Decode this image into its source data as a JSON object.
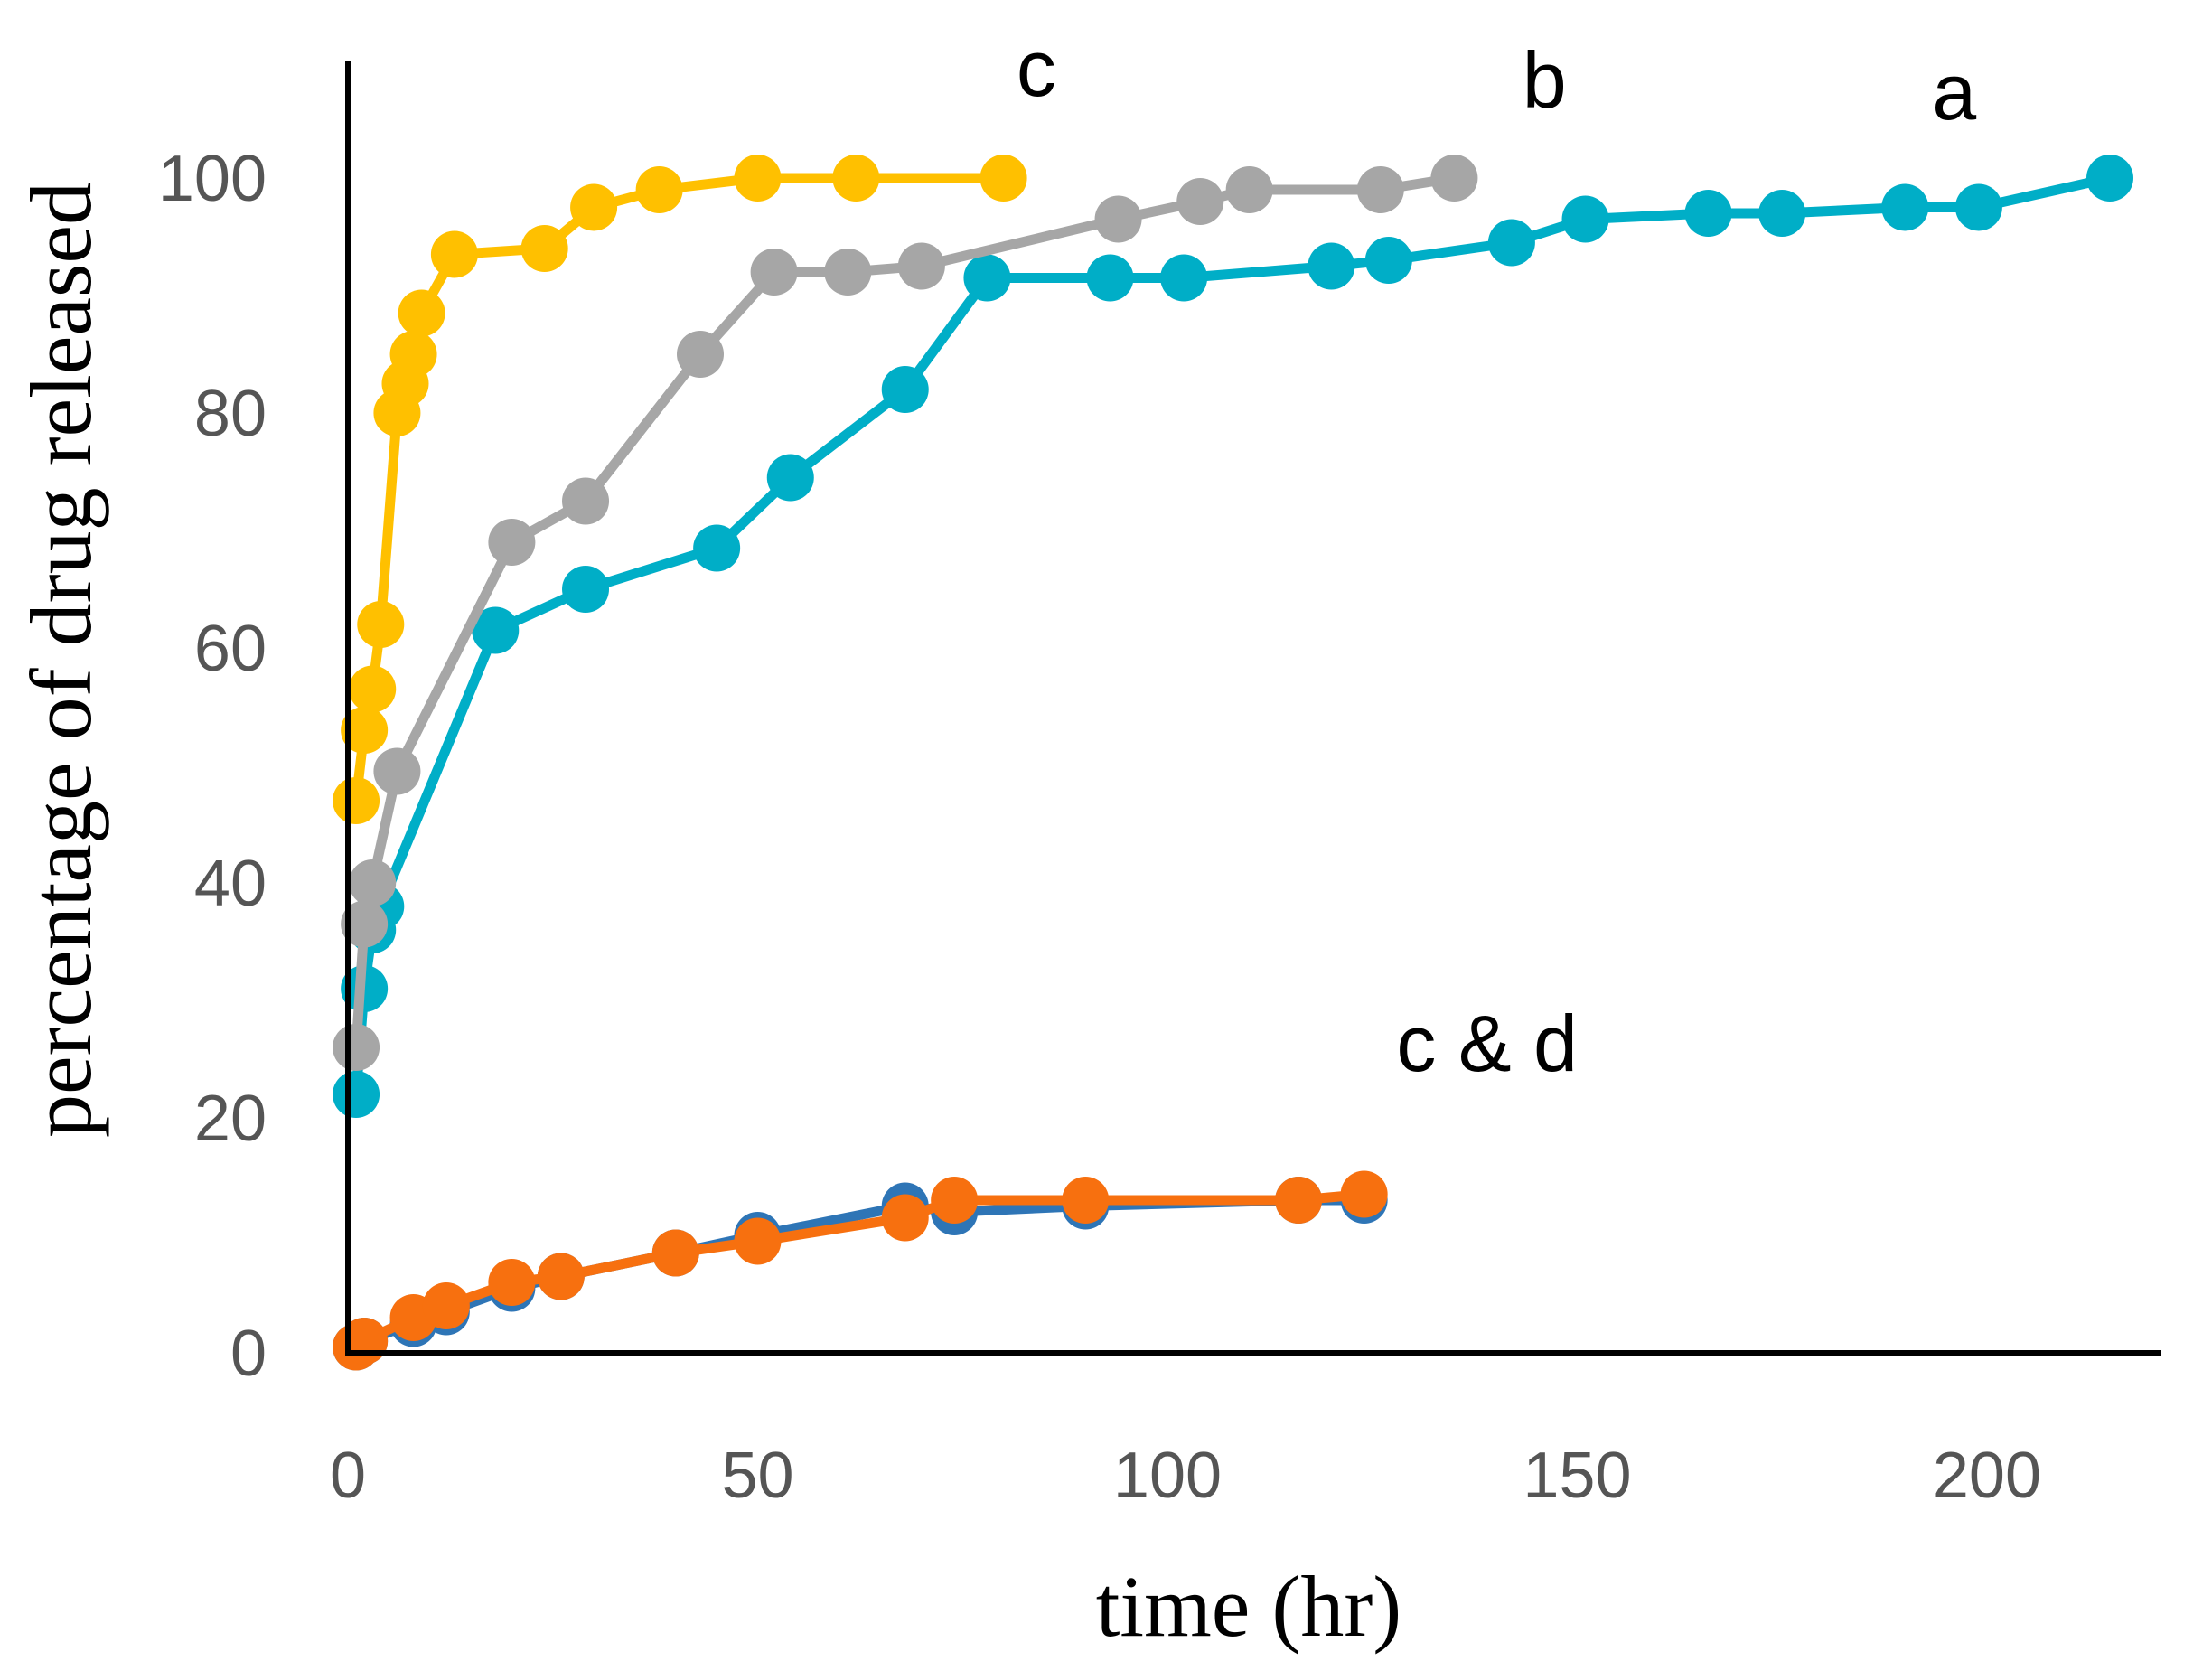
{
  "chart_data": {
    "type": "line",
    "title": "",
    "xlabel": "time (hr)",
    "ylabel": "percentage of drug released",
    "xlim": [
      0,
      220
    ],
    "ylim": [
      0,
      110
    ],
    "xticks": [
      0,
      50,
      100,
      150,
      200
    ],
    "yticks": [
      0,
      20,
      40,
      60,
      80,
      100
    ],
    "grid": false,
    "legend": "none",
    "annotations": [
      {
        "text": "c",
        "x": 84,
        "y": 107
      },
      {
        "text": "b",
        "x": 146,
        "y": 106
      },
      {
        "text": "a",
        "x": 196,
        "y": 105
      },
      {
        "text": "c & d",
        "x": 139,
        "y": 24
      }
    ],
    "series": [
      {
        "color": "#00AEC7",
        "x": [
          1,
          2,
          3,
          4,
          18,
          29,
          45,
          54,
          68,
          78,
          93,
          102,
          120,
          127,
          142,
          151,
          166,
          175,
          190,
          199,
          215
        ],
        "y": [
          22,
          31,
          36,
          38,
          61.5,
          65,
          68.5,
          74.5,
          82,
          91.5,
          91.5,
          91.5,
          92.5,
          93,
          94.5,
          96.5,
          97,
          97,
          97.5,
          97.5,
          100
        ]
      },
      {
        "color": "#A6A6A6",
        "x": [
          1,
          2,
          3,
          6,
          20,
          29,
          43,
          52,
          61,
          70,
          94,
          104,
          110,
          126,
          135
        ],
        "y": [
          26,
          36.5,
          40,
          49.5,
          69,
          72.5,
          85,
          92,
          92,
          92.5,
          96.5,
          98,
          99,
          99,
          100
        ]
      },
      {
        "color": "#FFC000",
        "x": [
          1,
          2,
          3,
          4,
          6,
          7,
          8,
          9,
          13,
          24,
          30,
          38,
          50,
          62,
          80
        ],
        "y": [
          47,
          53,
          56.5,
          62,
          80,
          82.5,
          85,
          88.5,
          93.5,
          94,
          97.5,
          99,
          100,
          100,
          100
        ]
      },
      {
        "color": "#2E75B6",
        "x": [
          1,
          2,
          8,
          12,
          20,
          26,
          40,
          50,
          68,
          74,
          90,
          116,
          124
        ],
        "y": [
          0.5,
          1,
          2.5,
          3.5,
          5.5,
          6.5,
          8.5,
          10,
          12.5,
          12,
          12.5,
          13,
          13
        ]
      },
      {
        "color": "#F7700F",
        "x": [
          1,
          2,
          8,
          12,
          20,
          26,
          40,
          50,
          68,
          74,
          90,
          116,
          124
        ],
        "y": [
          0.5,
          1,
          3,
          4,
          6,
          6.5,
          8.5,
          9.5,
          11.5,
          13,
          13,
          13,
          13.5
        ]
      }
    ]
  }
}
